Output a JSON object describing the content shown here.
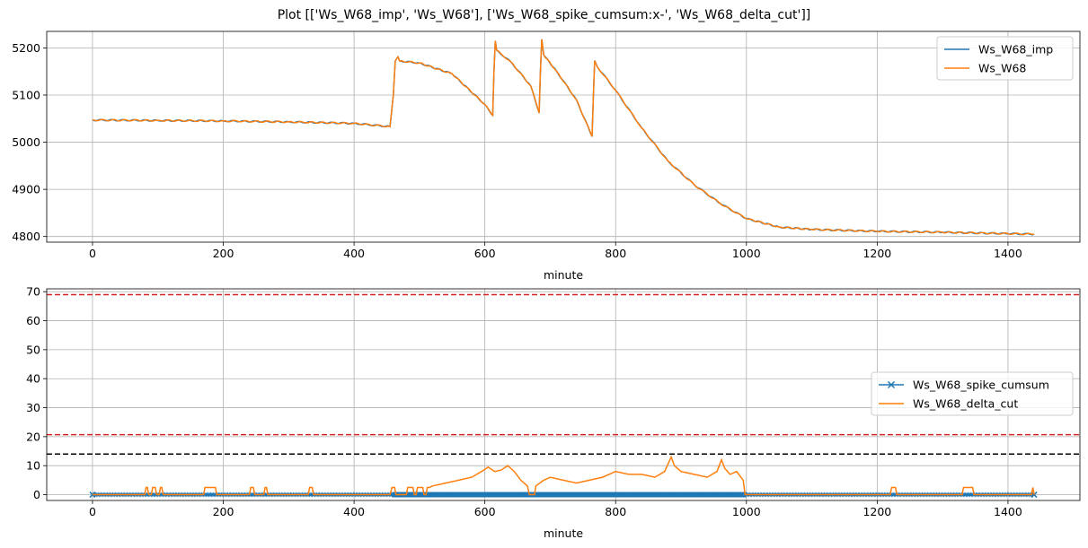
{
  "figure_title": "Plot [['Ws_W68_imp', 'Ws_W68'], ['Ws_W68_spike_cumsum:x-', 'Ws_W68_delta_cut']]",
  "colors": {
    "blue": "#1f77b4",
    "orange": "#ff7f0e",
    "red": "#d62728",
    "black": "#000000",
    "grid": "#b0b0b0"
  },
  "chart_data": [
    {
      "type": "line",
      "xlabel": "minute",
      "ylabel": "",
      "xlim": [
        -70,
        1510
      ],
      "ylim": [
        4788,
        5235
      ],
      "xticks": [
        0,
        200,
        400,
        600,
        800,
        1000,
        1200,
        1400
      ],
      "yticks": [
        4800,
        4900,
        5000,
        5100,
        5200
      ],
      "grid": true,
      "legend": "top-right",
      "series": [
        {
          "name": "Ws_W68_imp",
          "color": "#1f77b4",
          "points": [
            [
              0,
              5047
            ],
            [
              100,
              5046
            ],
            [
              200,
              5045
            ],
            [
              300,
              5043
            ],
            [
              400,
              5040
            ],
            [
              455,
              5033
            ],
            [
              460,
              5100
            ],
            [
              463,
              5172
            ],
            [
              467,
              5181
            ],
            [
              470,
              5172
            ],
            [
              500,
              5168
            ],
            [
              550,
              5145
            ],
            [
              600,
              5080
            ],
            [
              612,
              5057
            ],
            [
              614,
              5150
            ],
            [
              616,
              5215
            ],
            [
              618,
              5195
            ],
            [
              640,
              5170
            ],
            [
              670,
              5120
            ],
            [
              683,
              5062
            ],
            [
              685,
              5150
            ],
            [
              687,
              5218
            ],
            [
              690,
              5185
            ],
            [
              710,
              5150
            ],
            [
              740,
              5090
            ],
            [
              764,
              5012
            ],
            [
              766,
              5100
            ],
            [
              768,
              5173
            ],
            [
              772,
              5160
            ],
            [
              800,
              5110
            ],
            [
              840,
              5030
            ],
            [
              880,
              4960
            ],
            [
              920,
              4910
            ],
            [
              960,
              4870
            ],
            [
              1000,
              4838
            ],
            [
              1050,
              4820
            ],
            [
              1100,
              4815
            ],
            [
              1200,
              4811
            ],
            [
              1300,
              4809
            ],
            [
              1400,
              4806
            ],
            [
              1440,
              4805
            ]
          ]
        },
        {
          "name": "Ws_W68",
          "color": "#ff7f0e",
          "points": [
            [
              0,
              5047
            ],
            [
              100,
              5046
            ],
            [
              200,
              5045
            ],
            [
              300,
              5043
            ],
            [
              400,
              5040
            ],
            [
              455,
              5033
            ],
            [
              460,
              5100
            ],
            [
              463,
              5172
            ],
            [
              467,
              5181
            ],
            [
              470,
              5172
            ],
            [
              500,
              5168
            ],
            [
              550,
              5145
            ],
            [
              600,
              5080
            ],
            [
              612,
              5057
            ],
            [
              614,
              5150
            ],
            [
              616,
              5215
            ],
            [
              618,
              5195
            ],
            [
              640,
              5170
            ],
            [
              670,
              5120
            ],
            [
              683,
              5062
            ],
            [
              685,
              5150
            ],
            [
              687,
              5218
            ],
            [
              690,
              5185
            ],
            [
              710,
              5150
            ],
            [
              740,
              5090
            ],
            [
              764,
              5012
            ],
            [
              766,
              5100
            ],
            [
              768,
              5173
            ],
            [
              772,
              5160
            ],
            [
              800,
              5110
            ],
            [
              840,
              5030
            ],
            [
              880,
              4960
            ],
            [
              920,
              4910
            ],
            [
              960,
              4870
            ],
            [
              1000,
              4838
            ],
            [
              1050,
              4820
            ],
            [
              1100,
              4815
            ],
            [
              1200,
              4811
            ],
            [
              1300,
              4809
            ],
            [
              1400,
              4806
            ],
            [
              1440,
              4805
            ]
          ]
        }
      ]
    },
    {
      "type": "line",
      "xlabel": "minute",
      "ylabel": "",
      "xlim": [
        -70,
        1510
      ],
      "ylim": [
        -2,
        71
      ],
      "xticks": [
        0,
        200,
        400,
        600,
        800,
        1000,
        1200,
        1400
      ],
      "yticks": [
        0,
        10,
        20,
        30,
        40,
        50,
        60,
        70
      ],
      "grid": true,
      "legend": "center-right",
      "hlines": [
        {
          "y": 69,
          "color": "#d62728",
          "style": "dashed"
        },
        {
          "y": 20.7,
          "color": "#d62728",
          "style": "dashed"
        },
        {
          "y": 14,
          "color": "#000000",
          "style": "dashed"
        }
      ],
      "series": [
        {
          "name": "Ws_W68_spike_cumsum",
          "color": "#1f77b4",
          "marker": "x",
          "values_low": -0.3,
          "values_high": 0.3,
          "dense_range": [
            458,
            1000
          ],
          "x_range": [
            0,
            1440
          ]
        },
        {
          "name": "Ws_W68_delta_cut",
          "color": "#ff7f0e",
          "points": [
            [
              0,
              0
            ],
            [
              80,
              0
            ],
            [
              82,
              2.5
            ],
            [
              84,
              2.5
            ],
            [
              86,
              0
            ],
            [
              90,
              0
            ],
            [
              92,
              2.5
            ],
            [
              96,
              2.5
            ],
            [
              98,
              0
            ],
            [
              102,
              0
            ],
            [
              104,
              2.5
            ],
            [
              106,
              2.5
            ],
            [
              108,
              0
            ],
            [
              170,
              0
            ],
            [
              172,
              2.5
            ],
            [
              188,
              2.5
            ],
            [
              190,
              0
            ],
            [
              240,
              0
            ],
            [
              242,
              2.5
            ],
            [
              246,
              2.5
            ],
            [
              248,
              0
            ],
            [
              262,
              0
            ],
            [
              264,
              2.5
            ],
            [
              266,
              2.5
            ],
            [
              268,
              0
            ],
            [
              330,
              0
            ],
            [
              332,
              2.5
            ],
            [
              336,
              2.5
            ],
            [
              338,
              0
            ],
            [
              455,
              0
            ],
            [
              458,
              2.5
            ],
            [
              462,
              2.5
            ],
            [
              464,
              0
            ],
            [
              480,
              0
            ],
            [
              482,
              2.5
            ],
            [
              490,
              2.5
            ],
            [
              492,
              0
            ],
            [
              495,
              0
            ],
            [
              497,
              2.5
            ],
            [
              505,
              2.5
            ],
            [
              507,
              0
            ],
            [
              510,
              0
            ],
            [
              512,
              2.5
            ],
            [
              515,
              2.5
            ],
            [
              520,
              3
            ],
            [
              540,
              4
            ],
            [
              560,
              5
            ],
            [
              580,
              6
            ],
            [
              595,
              8
            ],
            [
              605,
              9.5
            ],
            [
              615,
              8
            ],
            [
              625,
              8.5
            ],
            [
              635,
              10
            ],
            [
              645,
              8
            ],
            [
              655,
              5
            ],
            [
              665,
              3
            ],
            [
              668,
              0
            ],
            [
              676,
              0
            ],
            [
              678,
              3
            ],
            [
              690,
              5
            ],
            [
              700,
              6
            ],
            [
              720,
              5
            ],
            [
              740,
              4
            ],
            [
              760,
              5
            ],
            [
              780,
              6
            ],
            [
              790,
              7
            ],
            [
              800,
              8
            ],
            [
              820,
              7
            ],
            [
              840,
              7
            ],
            [
              860,
              6
            ],
            [
              875,
              8
            ],
            [
              885,
              13
            ],
            [
              890,
              10
            ],
            [
              900,
              8
            ],
            [
              920,
              7
            ],
            [
              940,
              6
            ],
            [
              955,
              8
            ],
            [
              962,
              12
            ],
            [
              967,
              9
            ],
            [
              975,
              7
            ],
            [
              985,
              8
            ],
            [
              995,
              5
            ],
            [
              998,
              0
            ],
            [
              1220,
              0
            ],
            [
              1222,
              2.5
            ],
            [
              1228,
              2.5
            ],
            [
              1230,
              0
            ],
            [
              1330,
              0
            ],
            [
              1332,
              2.5
            ],
            [
              1346,
              2.5
            ],
            [
              1348,
              0
            ],
            [
              1436,
              0
            ],
            [
              1438,
              2.5
            ],
            [
              1440,
              0
            ]
          ]
        }
      ]
    }
  ]
}
